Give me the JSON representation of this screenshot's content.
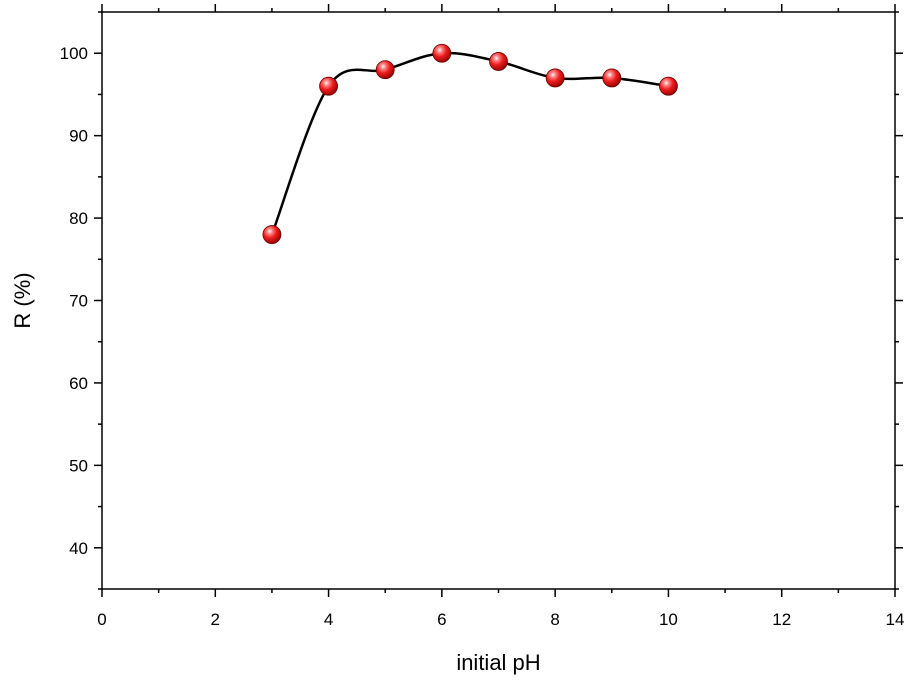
{
  "chart_data": {
    "type": "scatter",
    "xlabel": "initial pH",
    "ylabel": "R (%)",
    "xlim": [
      0,
      14
    ],
    "ylim": [
      35,
      105
    ],
    "x_ticks": [
      0,
      2,
      4,
      6,
      8,
      10,
      12,
      14
    ],
    "y_ticks": [
      40,
      50,
      60,
      70,
      80,
      90,
      100
    ],
    "x_minor_step": 1,
    "y_minor_step": 5,
    "grid": false,
    "series": [
      {
        "points": [
          {
            "x": 3,
            "y": 78
          },
          {
            "x": 4,
            "y": 96
          },
          {
            "x": 5,
            "y": 98
          },
          {
            "x": 6,
            "y": 100
          },
          {
            "x": 7,
            "y": 99
          },
          {
            "x": 8,
            "y": 97
          },
          {
            "x": 9,
            "y": 97
          },
          {
            "x": 10,
            "y": 96
          }
        ],
        "marker": "sphere",
        "marker_color": "#e8101a",
        "line": "smooth",
        "line_color": "#000000"
      }
    ]
  }
}
